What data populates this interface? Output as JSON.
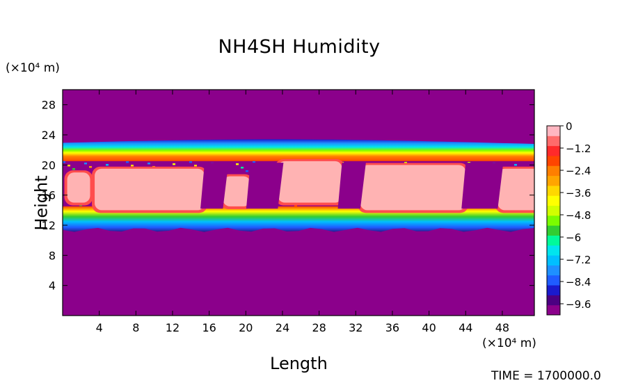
{
  "chart_data": {
    "type": "heatmap",
    "title": "NH4SH Humidity",
    "xlabel": "Length",
    "ylabel": "Height",
    "x_unit": "(×10⁴ m)",
    "y_unit": "(×10⁴ m)",
    "xlim": [
      0,
      51.5
    ],
    "ylim": [
      0,
      30
    ],
    "x_ticks": [
      4,
      8,
      12,
      16,
      20,
      24,
      28,
      32,
      36,
      40,
      44,
      48
    ],
    "y_ticks": [
      4,
      8,
      12,
      16,
      20,
      24,
      28
    ],
    "colorbar": {
      "min": -10.2,
      "max": 0,
      "labels": [
        0,
        -1.2,
        -2.4,
        -3.6,
        -4.8,
        -6,
        -7.2,
        -8.4,
        -9.6
      ],
      "colors": [
        "#8b008b",
        "#4b0082",
        "#1a1acd",
        "#1f5cff",
        "#1e90ff",
        "#00bfff",
        "#00e5ee",
        "#00fa9a",
        "#32cd32",
        "#7cfc00",
        "#d2ff00",
        "#ffff00",
        "#ffd700",
        "#ffa500",
        "#ff7f00",
        "#ff4500",
        "#ff2a2a",
        "#ff6b6b",
        "#ffb6c1"
      ]
    },
    "layers": [
      {
        "name": "background",
        "value": -10.2
      },
      {
        "name": "upper band",
        "y_range": [
          20.5,
          23.5
        ],
        "value_profile": "cyan-blue"
      },
      {
        "name": "lower band",
        "y_range": [
          11.2,
          14.5
        ],
        "value_profile": "cyan-blue"
      }
    ],
    "saturated_regions": [
      {
        "x": [
          0.5,
          3
        ],
        "y": [
          15,
          19
        ],
        "value": 0
      },
      {
        "x": [
          3.5,
          15.5
        ],
        "y": [
          14,
          19.5
        ],
        "value": 0
      },
      {
        "x": [
          17.5,
          20.5
        ],
        "y": [
          14.5,
          18.5
        ],
        "value": 0
      },
      {
        "x": [
          23.5,
          30.5
        ],
        "y": [
          15,
          20.5
        ],
        "value": 0
      },
      {
        "x": [
          32.5,
          44
        ],
        "y": [
          14,
          20
        ],
        "value": 0
      },
      {
        "x": [
          47.5,
          58
        ],
        "y": [
          14,
          19.5
        ],
        "value": 0
      }
    ]
  },
  "footer": {
    "time_label": "TIME = 1700000.0"
  }
}
